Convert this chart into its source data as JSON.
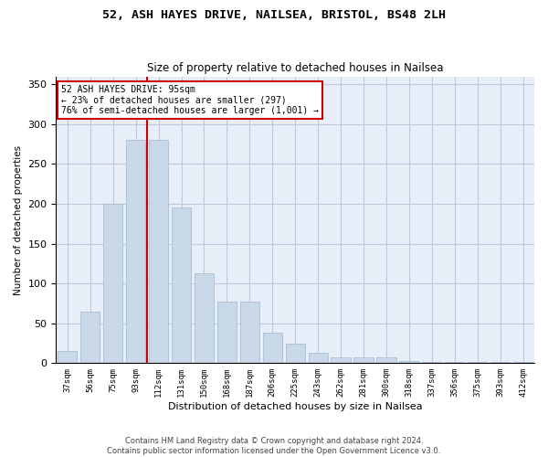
{
  "title1": "52, ASH HAYES DRIVE, NAILSEA, BRISTOL, BS48 2LH",
  "title2": "Size of property relative to detached houses in Nailsea",
  "xlabel": "Distribution of detached houses by size in Nailsea",
  "ylabel": "Number of detached properties",
  "categories": [
    "37sqm",
    "56sqm",
    "75sqm",
    "93sqm",
    "112sqm",
    "131sqm",
    "150sqm",
    "168sqm",
    "187sqm",
    "206sqm",
    "225sqm",
    "243sqm",
    "262sqm",
    "281sqm",
    "300sqm",
    "318sqm",
    "337sqm",
    "356sqm",
    "375sqm",
    "393sqm",
    "412sqm"
  ],
  "values": [
    15,
    65,
    200,
    280,
    280,
    195,
    113,
    77,
    77,
    38,
    25,
    13,
    7,
    7,
    7,
    3,
    2,
    1,
    1,
    1,
    2
  ],
  "bar_color": "#c8d8e8",
  "bar_edge_color": "#a0b8cc",
  "grid_color": "#c0c8d8",
  "background_color": "#e8eef8",
  "vline_x_index": 3,
  "vline_color": "#cc0000",
  "annotation_text": "52 ASH HAYES DRIVE: 95sqm\n← 23% of detached houses are smaller (297)\n76% of semi-detached houses are larger (1,001) →",
  "annotation_box_color": "#cc0000",
  "ylim": [
    0,
    360
  ],
  "yticks": [
    0,
    50,
    100,
    150,
    200,
    250,
    300,
    350
  ],
  "footer1": "Contains HM Land Registry data © Crown copyright and database right 2024.",
  "footer2": "Contains public sector information licensed under the Open Government Licence v3.0."
}
